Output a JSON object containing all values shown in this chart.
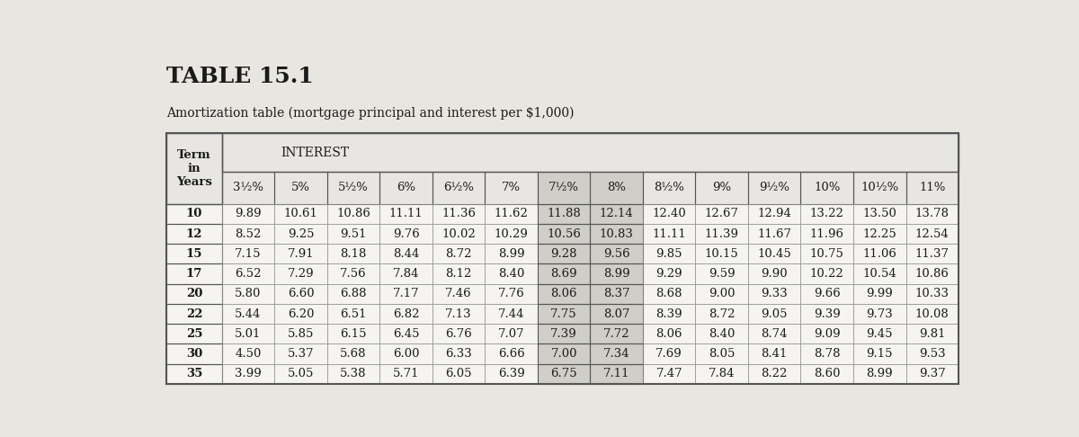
{
  "title": "TABLE 15.1",
  "subtitle": "Amortization table (mortgage principal and interest per $1,000)",
  "rate_labels": [
    "3½%",
    "5%",
    "5½%",
    "6%",
    "6½%",
    "7%",
    "7½%",
    "8%",
    "8½%",
    "9%",
    "9½%",
    "10%",
    "10½%",
    "11%"
  ],
  "row_labels": [
    "10",
    "12",
    "15",
    "17",
    "20",
    "22",
    "25",
    "30",
    "35"
  ],
  "table_data": [
    [
      9.89,
      10.61,
      10.86,
      11.11,
      11.36,
      11.62,
      11.88,
      12.14,
      12.4,
      12.67,
      12.94,
      13.22,
      13.5,
      13.78
    ],
    [
      8.52,
      9.25,
      9.51,
      9.76,
      10.02,
      10.29,
      10.56,
      10.83,
      11.11,
      11.39,
      11.67,
      11.96,
      12.25,
      12.54
    ],
    [
      7.15,
      7.91,
      8.18,
      8.44,
      8.72,
      8.99,
      9.28,
      9.56,
      9.85,
      10.15,
      10.45,
      10.75,
      11.06,
      11.37
    ],
    [
      6.52,
      7.29,
      7.56,
      7.84,
      8.12,
      8.4,
      8.69,
      8.99,
      9.29,
      9.59,
      9.9,
      10.22,
      10.54,
      10.86
    ],
    [
      5.8,
      6.6,
      6.88,
      7.17,
      7.46,
      7.76,
      8.06,
      8.37,
      8.68,
      9.0,
      9.33,
      9.66,
      9.99,
      10.33
    ],
    [
      5.44,
      6.2,
      6.51,
      6.82,
      7.13,
      7.44,
      7.75,
      8.07,
      8.39,
      8.72,
      9.05,
      9.39,
      9.73,
      10.08
    ],
    [
      5.01,
      5.85,
      6.15,
      6.45,
      6.76,
      7.07,
      7.39,
      7.72,
      8.06,
      8.4,
      8.74,
      9.09,
      9.45,
      9.81
    ],
    [
      4.5,
      5.37,
      5.68,
      6.0,
      6.33,
      6.66,
      7.0,
      7.34,
      7.69,
      8.05,
      8.41,
      8.78,
      9.15,
      9.53
    ],
    [
      3.99,
      5.05,
      5.38,
      5.71,
      6.05,
      6.39,
      6.75,
      7.11,
      7.47,
      7.84,
      8.22,
      8.6,
      8.99,
      9.37
    ]
  ],
  "highlight_cols": [
    6,
    7
  ],
  "page_bg": "#e8e6e0",
  "table_bg": "#f5f4f1",
  "header_bg": "#e8e6e2",
  "highlight_bg": "#d0cec8",
  "cell_bg_normal": "#f5f4f1",
  "border_dark": "#555555",
  "border_light": "#999999",
  "text_color": "#1a1a1a",
  "title_fontsize": 18,
  "subtitle_fontsize": 10,
  "cell_fontsize": 9.5,
  "header_fontsize": 9.5
}
